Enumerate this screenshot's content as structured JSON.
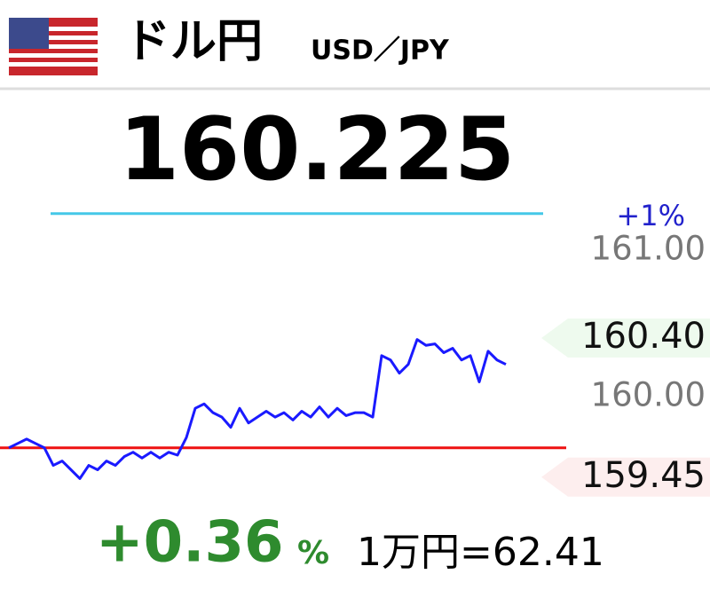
{
  "header": {
    "title": "ドル円",
    "subtitle": "USD／JPY"
  },
  "price": "160.225",
  "change": {
    "value": "+0.36",
    "unit": "%"
  },
  "conversion": "1万円=62.41",
  "chart_data": {
    "type": "line",
    "series": [
      {
        "color": "#1a1aff",
        "values": [
          159.65,
          159.68,
          159.71,
          159.68,
          159.65,
          159.53,
          159.56,
          159.5,
          159.44,
          159.53,
          159.5,
          159.56,
          159.53,
          159.59,
          159.62,
          159.58,
          159.62,
          159.58,
          159.62,
          159.6,
          159.72,
          159.92,
          159.95,
          159.89,
          159.86,
          159.79,
          159.92,
          159.82,
          159.86,
          159.9,
          159.86,
          159.89,
          159.84,
          159.9,
          159.86,
          159.93,
          159.86,
          159.92,
          159.87,
          159.89,
          159.89,
          159.86,
          160.28,
          160.25,
          160.16,
          160.22,
          160.39,
          160.35,
          160.36,
          160.3,
          160.33,
          160.25,
          160.28,
          160.1,
          160.31,
          160.25,
          160.22
        ]
      }
    ],
    "ylim": [
      159.2,
      161.25
    ],
    "yticks": [
      {
        "value": 161,
        "label": "161.00"
      },
      {
        "value": 160,
        "label": "160.00"
      }
    ],
    "reference_lines": [
      {
        "value": 161.25,
        "label": "+1%",
        "color": "#45c8e8"
      },
      {
        "value": 159.65,
        "color": "#ee1111"
      }
    ],
    "markers": [
      {
        "value": 160.4,
        "label": "160.40",
        "color": "#eefaee"
      },
      {
        "value": 159.45,
        "label": "159.45",
        "color": "#fdeeee"
      }
    ]
  }
}
